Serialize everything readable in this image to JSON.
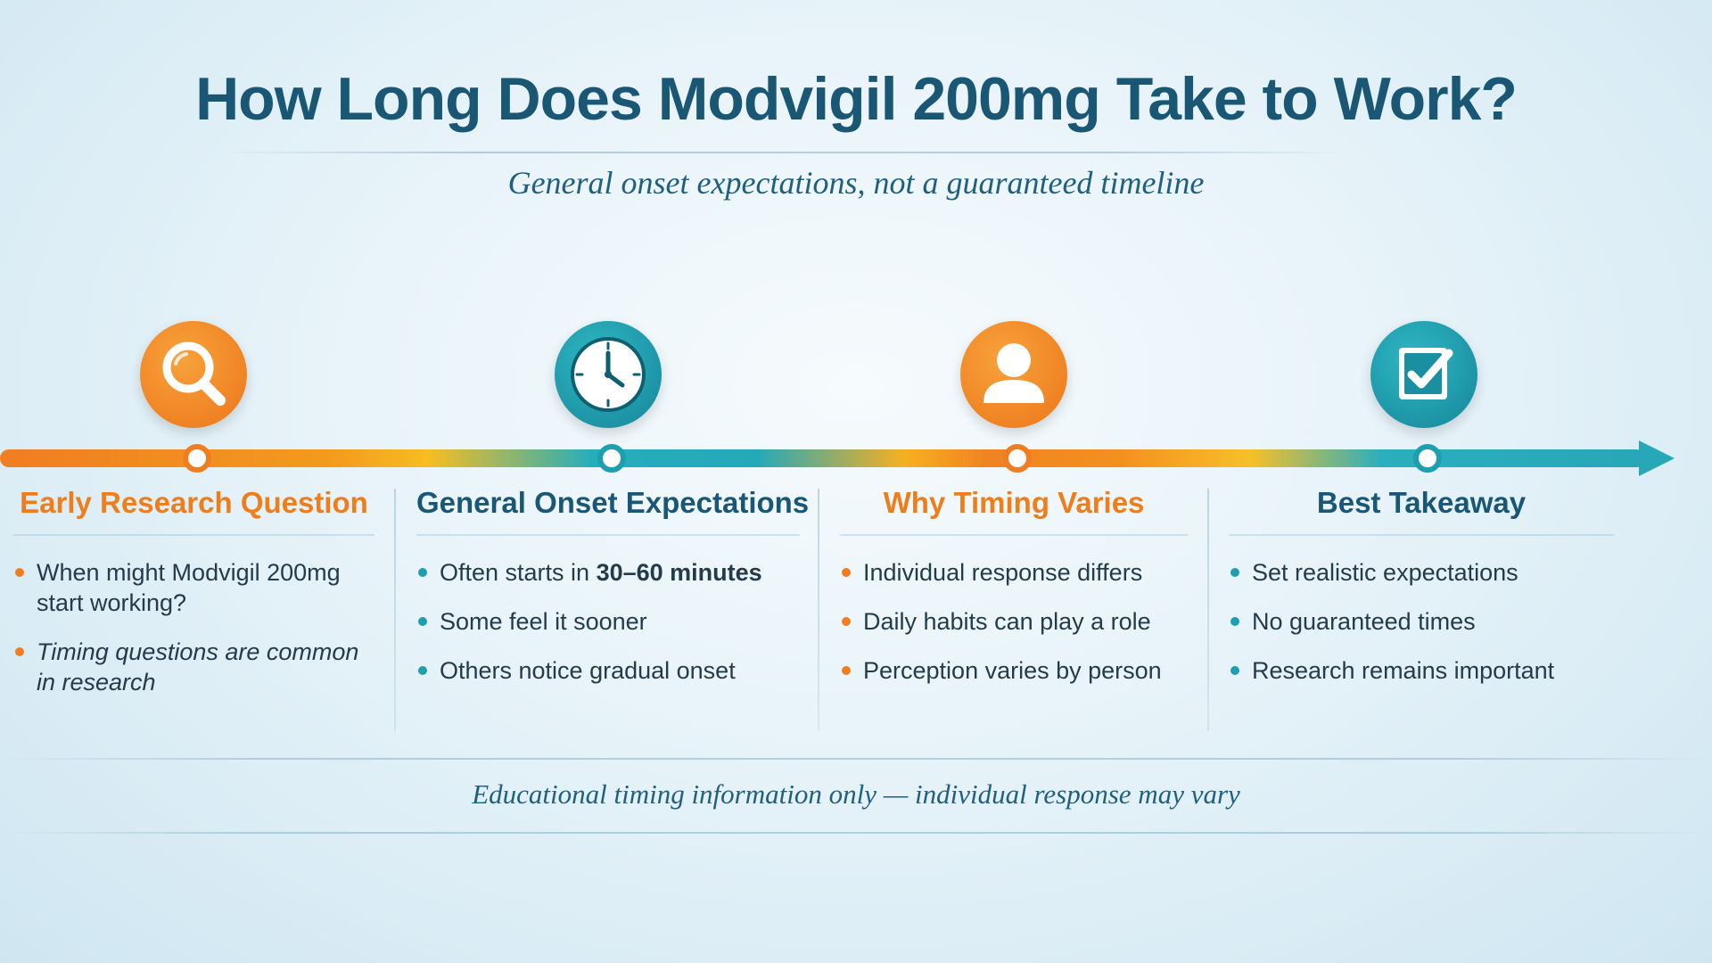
{
  "title": "How Long Does Modvigil 200mg Take to Work?",
  "subtitle": "General onset expectations, not a guaranteed timeline",
  "steps": [
    {
      "title": "Early Research Question",
      "icon": "magnifying-glass-icon",
      "color": "#f07d22",
      "bullets": [
        {
          "text": "When might Modvigil 200mg start working?"
        },
        {
          "text": "Timing questions are common in research",
          "italic": true
        }
      ]
    },
    {
      "title": "General Onset Expectations",
      "icon": "clock-icon",
      "color": "#1e9fb0",
      "bullets": [
        {
          "prefix": "Often starts in ",
          "bold": "30–60 minutes"
        },
        {
          "text": "Some feel it sooner"
        },
        {
          "text": "Others notice gradual onset"
        }
      ]
    },
    {
      "title": "Why Timing Varies",
      "icon": "person-icon",
      "color": "#f07d22",
      "bullets": [
        {
          "text": "Individual response differs"
        },
        {
          "text": "Daily habits can play a role"
        },
        {
          "text": "Perception varies by person"
        }
      ]
    },
    {
      "title": "Best Takeaway",
      "icon": "checkbox-icon",
      "color": "#1e9fb0",
      "bullets": [
        {
          "text": "Set realistic expectations"
        },
        {
          "text": "No guaranteed times"
        },
        {
          "text": "Research remains important"
        }
      ]
    }
  ],
  "footer": "Educational timing information only — individual response may vary",
  "colors": {
    "orange": "#f07d22",
    "teal": "#1e9fb0",
    "navy": "#1a5775"
  }
}
